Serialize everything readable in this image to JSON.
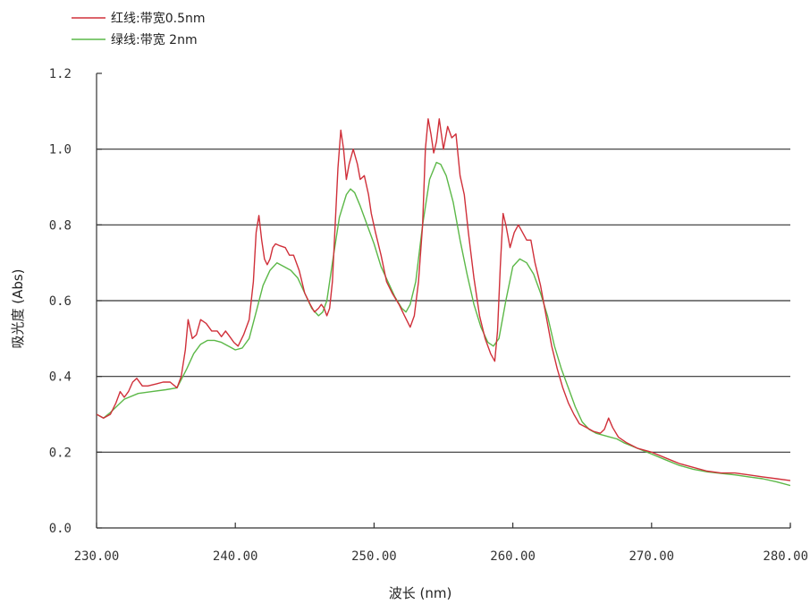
{
  "chart_data": {
    "type": "line",
    "xlabel": "波长 (nm)",
    "ylabel": "吸光度 (Abs)",
    "xlim": [
      230,
      280
    ],
    "ylim": [
      0,
      1.2
    ],
    "x_ticks": [
      230,
      240,
      250,
      260,
      270,
      280
    ],
    "x_tick_labels": [
      "230.00",
      "240.00",
      "250.00",
      "260.00",
      "270.00",
      "280.00"
    ],
    "y_ticks": [
      0,
      0.2,
      0.4,
      0.6,
      0.8,
      1.0,
      1.2
    ],
    "y_tick_labels": [
      "0.0",
      "0.2",
      "0.4",
      "0.6",
      "0.8",
      "1.0",
      "1.2"
    ],
    "grid": "horizontal",
    "legend_position": "top-left",
    "colors": {
      "red": "#d0303a",
      "green": "#5cb848",
      "grid": "#333333"
    },
    "series": [
      {
        "name": "红线:带宽0.5nm",
        "color": "#d0303a",
        "x": [
          230.0,
          230.5,
          231.0,
          231.4,
          231.7,
          232.0,
          232.3,
          232.6,
          232.9,
          233.3,
          233.7,
          234.3,
          234.8,
          235.3,
          235.8,
          236.1,
          236.4,
          236.6,
          236.9,
          237.2,
          237.5,
          237.9,
          238.3,
          238.7,
          239.0,
          239.3,
          239.6,
          239.9,
          240.2,
          240.6,
          241.0,
          241.3,
          241.5,
          241.7,
          241.9,
          242.1,
          242.3,
          242.5,
          242.7,
          242.9,
          243.2,
          243.6,
          243.9,
          244.2,
          244.6,
          245.0,
          245.4,
          245.7,
          246.0,
          246.2,
          246.4,
          246.6,
          246.8,
          247.0,
          247.2,
          247.4,
          247.6,
          247.8,
          248.0,
          248.2,
          248.5,
          248.8,
          249.0,
          249.3,
          249.6,
          249.8,
          250.1,
          250.5,
          250.9,
          251.3,
          251.8,
          252.2,
          252.6,
          252.9,
          253.2,
          253.5,
          253.7,
          253.9,
          254.1,
          254.3,
          254.5,
          254.7,
          255.0,
          255.3,
          255.6,
          255.9,
          256.2,
          256.5,
          256.8,
          257.2,
          257.6,
          258.0,
          258.4,
          258.7,
          258.9,
          259.1,
          259.3,
          259.5,
          259.8,
          260.1,
          260.4,
          260.7,
          261.0,
          261.3,
          261.6,
          262.0,
          262.4,
          262.8,
          263.2,
          263.6,
          264.0,
          264.4,
          264.8,
          265.3,
          265.8,
          266.3,
          266.6,
          266.9,
          267.2,
          267.6,
          268.2,
          269.0,
          270.0,
          271.0,
          272.0,
          273.0,
          274.0,
          275.0,
          276.0,
          277.0,
          278.0,
          279.0,
          280.0
        ],
        "values": [
          0.3,
          0.29,
          0.3,
          0.33,
          0.36,
          0.345,
          0.36,
          0.385,
          0.395,
          0.375,
          0.375,
          0.38,
          0.385,
          0.385,
          0.37,
          0.4,
          0.47,
          0.55,
          0.5,
          0.51,
          0.55,
          0.54,
          0.52,
          0.52,
          0.505,
          0.52,
          0.505,
          0.49,
          0.48,
          0.51,
          0.55,
          0.65,
          0.78,
          0.825,
          0.76,
          0.71,
          0.695,
          0.71,
          0.74,
          0.75,
          0.745,
          0.74,
          0.72,
          0.72,
          0.68,
          0.62,
          0.59,
          0.57,
          0.58,
          0.59,
          0.58,
          0.56,
          0.58,
          0.65,
          0.8,
          0.95,
          1.05,
          1.0,
          0.92,
          0.96,
          1.0,
          0.96,
          0.92,
          0.93,
          0.88,
          0.83,
          0.78,
          0.72,
          0.65,
          0.62,
          0.59,
          0.56,
          0.53,
          0.56,
          0.65,
          0.8,
          1.0,
          1.08,
          1.04,
          0.99,
          1.02,
          1.08,
          1.0,
          1.06,
          1.03,
          1.04,
          0.93,
          0.88,
          0.78,
          0.66,
          0.56,
          0.5,
          0.46,
          0.44,
          0.52,
          0.69,
          0.83,
          0.8,
          0.74,
          0.78,
          0.8,
          0.78,
          0.76,
          0.76,
          0.7,
          0.64,
          0.56,
          0.48,
          0.42,
          0.37,
          0.33,
          0.3,
          0.275,
          0.265,
          0.255,
          0.25,
          0.26,
          0.29,
          0.265,
          0.24,
          0.225,
          0.21,
          0.2,
          0.185,
          0.17,
          0.16,
          0.15,
          0.145,
          0.145,
          0.14,
          0.135,
          0.13,
          0.125
        ]
      },
      {
        "name": "绿线:带宽 2nm",
        "color": "#5cb848",
        "x": [
          230.0,
          230.5,
          231.0,
          232.0,
          233.0,
          234.0,
          235.0,
          235.8,
          236.5,
          237.0,
          237.5,
          238.0,
          238.5,
          239.0,
          239.5,
          240.0,
          240.5,
          241.0,
          241.5,
          242.0,
          242.5,
          243.0,
          243.5,
          244.0,
          244.5,
          245.0,
          245.5,
          246.0,
          246.3,
          246.6,
          247.0,
          247.5,
          248.0,
          248.3,
          248.6,
          249.0,
          249.5,
          250.0,
          250.5,
          251.0,
          251.5,
          252.0,
          252.3,
          252.6,
          253.0,
          253.5,
          254.0,
          254.5,
          254.8,
          255.2,
          255.7,
          256.2,
          256.7,
          257.2,
          257.7,
          258.2,
          258.6,
          259.0,
          259.5,
          260.0,
          260.5,
          261.0,
          261.5,
          262.0,
          262.5,
          263.0,
          263.5,
          264.0,
          264.5,
          265.0,
          265.5,
          266.0,
          266.5,
          267.0,
          267.5,
          268.0,
          269.0,
          270.0,
          271.0,
          272.0,
          273.0,
          274.0,
          275.0,
          276.0,
          277.0,
          278.0,
          279.0,
          280.0
        ],
        "values": [
          0.3,
          0.29,
          0.305,
          0.34,
          0.355,
          0.36,
          0.365,
          0.37,
          0.42,
          0.46,
          0.485,
          0.495,
          0.495,
          0.49,
          0.48,
          0.47,
          0.475,
          0.5,
          0.57,
          0.64,
          0.68,
          0.7,
          0.69,
          0.68,
          0.66,
          0.62,
          0.58,
          0.56,
          0.57,
          0.6,
          0.7,
          0.82,
          0.88,
          0.895,
          0.885,
          0.85,
          0.8,
          0.75,
          0.69,
          0.65,
          0.61,
          0.58,
          0.57,
          0.59,
          0.65,
          0.8,
          0.92,
          0.965,
          0.96,
          0.93,
          0.86,
          0.76,
          0.67,
          0.59,
          0.53,
          0.49,
          0.48,
          0.5,
          0.6,
          0.69,
          0.71,
          0.7,
          0.67,
          0.62,
          0.56,
          0.48,
          0.42,
          0.37,
          0.32,
          0.28,
          0.26,
          0.25,
          0.245,
          0.24,
          0.235,
          0.225,
          0.21,
          0.195,
          0.18,
          0.165,
          0.155,
          0.148,
          0.144,
          0.14,
          0.135,
          0.13,
          0.122,
          0.112
        ]
      }
    ]
  }
}
